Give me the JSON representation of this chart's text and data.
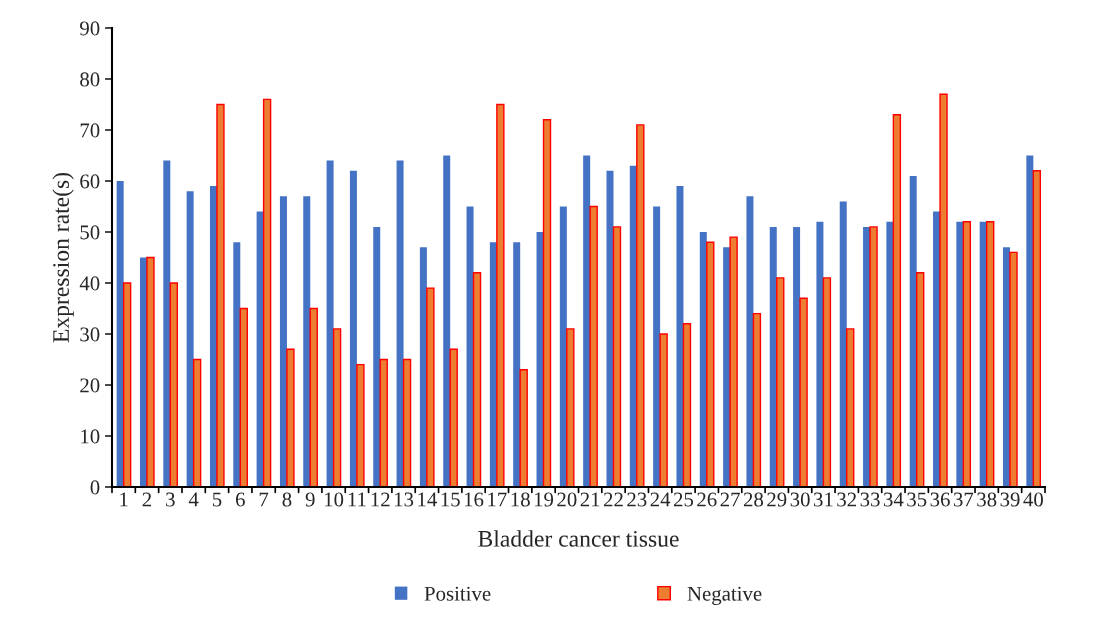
{
  "chart_data": {
    "type": "bar",
    "xlabel": "Bladder cancer tissue",
    "ylabel": "Expression rate(s)",
    "categories": [
      "1",
      "2",
      "3",
      "4",
      "5",
      "6",
      "7",
      "8",
      "9",
      "10",
      "11",
      "12",
      "13",
      "14",
      "15",
      "16",
      "17",
      "18",
      "19",
      "20",
      "21",
      "22",
      "23",
      "24",
      "25",
      "26",
      "27",
      "28",
      "29",
      "30",
      "31",
      "32",
      "33",
      "34",
      "35",
      "36",
      "37",
      "38",
      "39",
      "40"
    ],
    "series": [
      {
        "name": "Positive",
        "color": "#4472c4",
        "values": [
          60,
          45,
          64,
          58,
          59,
          48,
          54,
          57,
          57,
          64,
          62,
          51,
          64,
          47,
          65,
          55,
          48,
          48,
          50,
          55,
          65,
          62,
          63,
          55,
          59,
          50,
          47,
          57,
          51,
          51,
          52,
          56,
          51,
          52,
          61,
          54,
          52,
          52,
          47,
          65
        ]
      },
      {
        "name": "Negative",
        "color": "#ed7d31",
        "values": [
          40,
          45,
          40,
          25,
          75,
          35,
          76,
          27,
          35,
          31,
          24,
          25,
          25,
          39,
          27,
          42,
          75,
          23,
          72,
          31,
          55,
          51,
          71,
          30,
          32,
          48,
          49,
          34,
          41,
          37,
          41,
          31,
          51,
          73,
          42,
          77,
          52,
          52,
          46,
          62
        ]
      }
    ],
    "ylim": [
      0,
      90
    ],
    "yticks": [
      0,
      10,
      20,
      30,
      40,
      50,
      60,
      70,
      80,
      90
    ],
    "grid": false,
    "legend": "bottom"
  }
}
